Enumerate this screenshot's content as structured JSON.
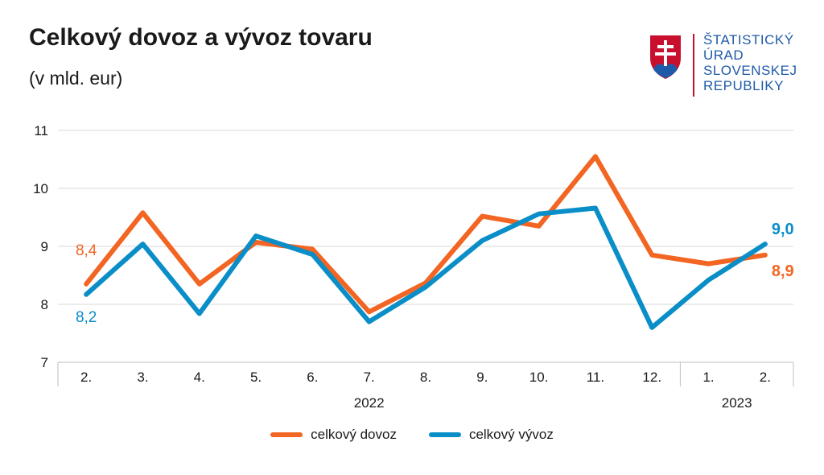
{
  "header": {
    "title": "Celkový dovoz a vývoz tovaru",
    "subtitle": "(v mld. eur)"
  },
  "logo": {
    "lines": [
      "ŠTATISTICKÝ",
      "ÚRAD",
      "SLOVENSKEJ",
      "REPUBLIKY"
    ],
    "icon": "slovak-coat-of-arms-icon",
    "colors": {
      "text": "#1f5aa8",
      "shield": "#c8102e",
      "hills": "#1f5aa8"
    }
  },
  "chart_data": {
    "type": "line",
    "categories": [
      "2.",
      "3.",
      "4.",
      "5.",
      "6.",
      "7.",
      "8.",
      "9.",
      "10.",
      "11.",
      "12.",
      "1.",
      "2."
    ],
    "year_groups": [
      {
        "label": "2022",
        "start": 0,
        "end": 10
      },
      {
        "label": "2023",
        "start": 11,
        "end": 12
      }
    ],
    "ylim": [
      7,
      11
    ],
    "yticks": [
      7,
      8,
      9,
      10,
      11
    ],
    "grid": true,
    "legend_position": "bottom",
    "series": [
      {
        "name": "celkový dovoz",
        "color": "#f26522",
        "values": [
          8.35,
          9.58,
          8.35,
          9.07,
          8.95,
          7.87,
          8.37,
          9.52,
          9.35,
          10.55,
          8.85,
          8.7,
          8.85
        ],
        "start_label": "8,4",
        "end_label": "8,9"
      },
      {
        "name": "celkový vývoz",
        "color": "#0a8ec7",
        "values": [
          8.17,
          9.04,
          7.84,
          9.18,
          8.86,
          7.7,
          8.3,
          9.1,
          9.56,
          9.66,
          7.6,
          8.42,
          9.04
        ],
        "start_label": "8,2",
        "end_label": "9,0"
      }
    ]
  }
}
